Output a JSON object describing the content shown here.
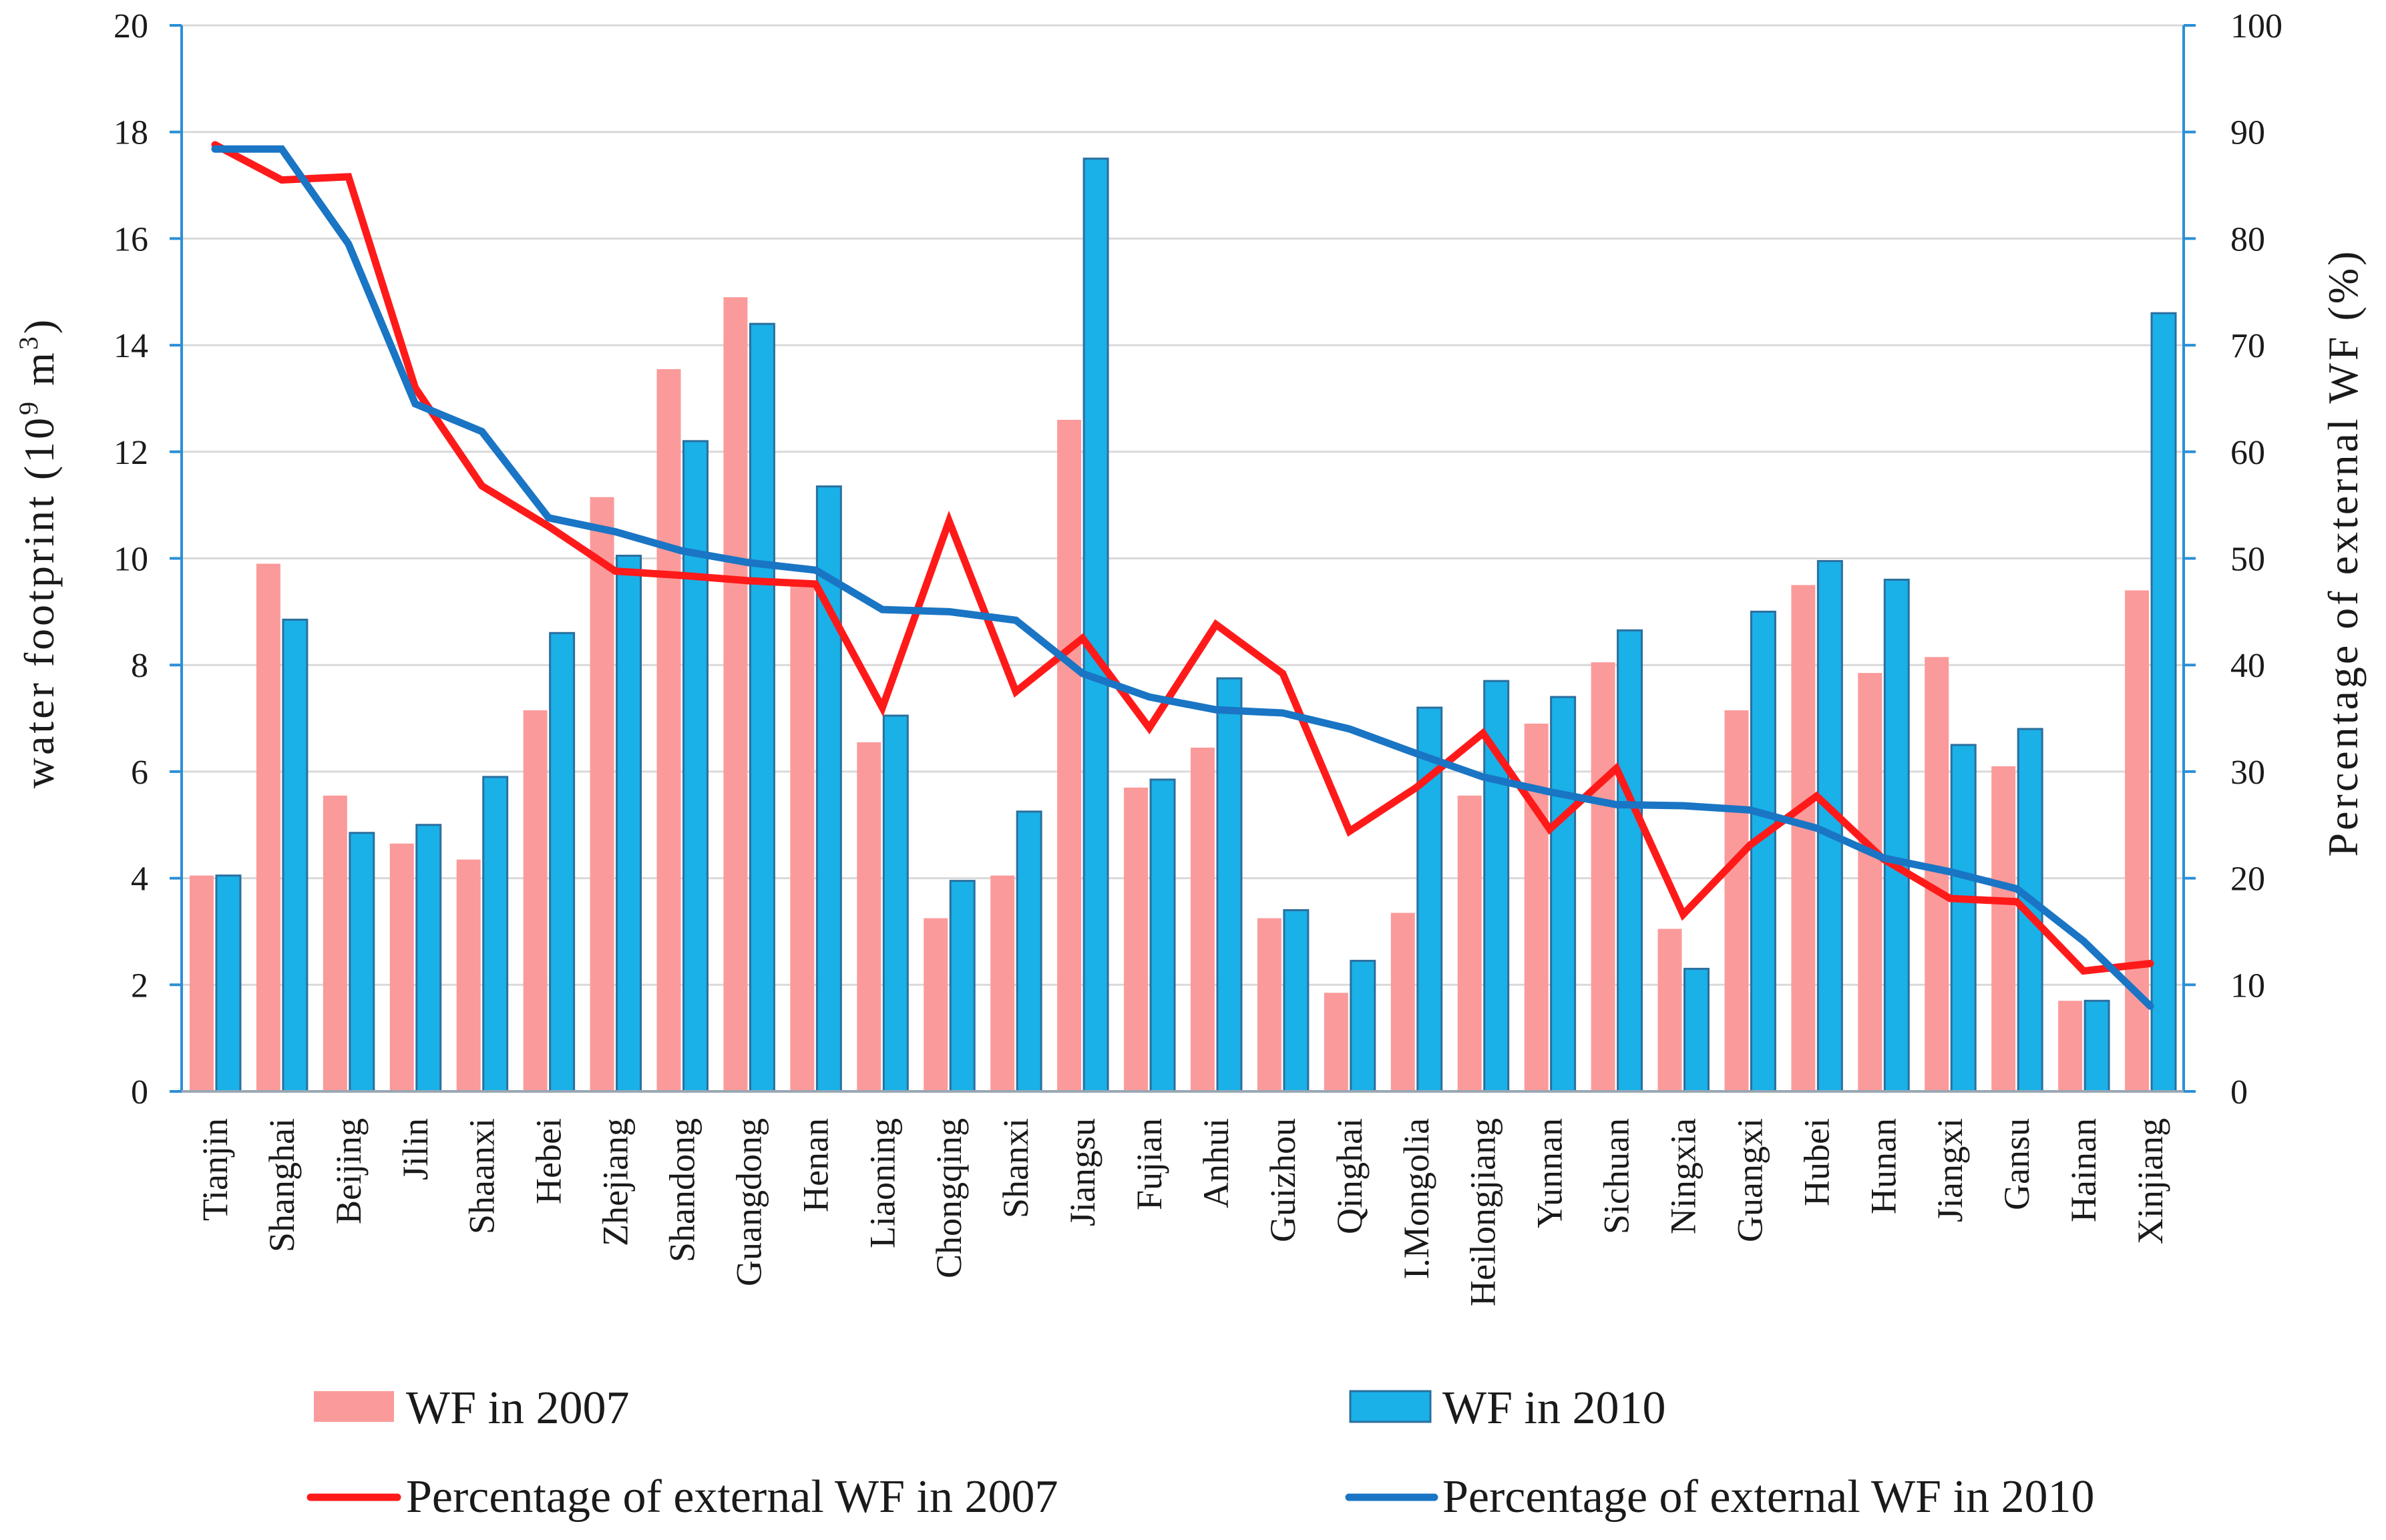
{
  "chart_data": {
    "type": "bar",
    "categories": [
      "Tianjin",
      "Shanghai",
      "Beijing",
      "Jilin",
      "Shaanxi",
      "Hebei",
      "Zhejiang",
      "Shandong",
      "Guangdong",
      "Henan",
      "Liaoning",
      "Chongqing",
      "Shanxi",
      "Jiangsu",
      "Fujian",
      "Anhui",
      "Guizhou",
      "Qinghai",
      "I.Mongolia",
      "Heilongjiang",
      "Yunnan",
      "Sichuan",
      "Ningxia",
      "Guangxi",
      "Hubei",
      "Hunan",
      "Jiangxi",
      "Gansu",
      "Hainan",
      "Xinjiang"
    ],
    "series": [
      {
        "name": "WF in 2007",
        "kind": "bar",
        "axis": "left",
        "color": "#fb9a9a",
        "values": [
          4.05,
          9.9,
          5.55,
          4.65,
          4.35,
          7.15,
          11.15,
          13.55,
          14.9,
          9.55,
          6.55,
          3.25,
          4.05,
          12.6,
          5.7,
          6.45,
          3.25,
          1.85,
          3.35,
          5.55,
          6.9,
          8.05,
          3.05,
          7.15,
          9.5,
          7.85,
          8.15,
          6.1,
          1.7,
          9.4
        ]
      },
      {
        "name": "WF in 2010",
        "kind": "bar",
        "axis": "right-bar",
        "color": "#1ab0e8",
        "values": [
          4.05,
          8.85,
          4.85,
          5.0,
          5.9,
          8.6,
          10.05,
          12.2,
          14.4,
          11.35,
          7.05,
          3.95,
          5.25,
          17.5,
          5.85,
          7.75,
          3.4,
          2.45,
          7.2,
          7.7,
          7.4,
          8.65,
          2.3,
          9.0,
          9.95,
          9.6,
          6.5,
          6.8,
          1.7,
          14.6
        ]
      },
      {
        "name": "Percentage of external WF in 2007",
        "kind": "line",
        "axis": "right",
        "color": "#ff1a1a",
        "values": [
          88.8,
          85.5,
          85.8,
          66.0,
          56.8,
          53.0,
          48.8,
          48.4,
          47.9,
          47.6,
          36.0,
          53.5,
          37.5,
          42.5,
          34.1,
          43.8,
          39.2,
          24.4,
          28.5,
          33.6,
          24.6,
          30.3,
          16.6,
          23.1,
          27.7,
          21.8,
          18.1,
          17.8,
          11.3,
          12.0
        ]
      },
      {
        "name": "Percentage of external WF in 2010",
        "kind": "line",
        "axis": "right",
        "color": "#1a75c4",
        "values": [
          88.4,
          88.4,
          79.5,
          64.5,
          61.9,
          53.8,
          52.5,
          50.7,
          49.6,
          48.9,
          45.2,
          45.0,
          44.2,
          39.2,
          37.0,
          35.8,
          35.5,
          34.0,
          31.7,
          29.5,
          28.1,
          26.9,
          26.8,
          26.4,
          24.7,
          21.9,
          20.6,
          19.0,
          14.1,
          8.0
        ]
      }
    ],
    "ylabel": "water footprint (10⁹ m³)",
    "ylabel_main": "water footprint (10",
    "ylabel_exp": "9",
    "ylabel_mid": " m",
    "ylabel_exp2": "3",
    "ylabel_end": ")",
    "y2label": "Percentage of external WF (%)",
    "ylim": [
      0,
      20
    ],
    "y2lim": [
      0,
      100
    ],
    "yticks": [
      0,
      2,
      4,
      6,
      8,
      10,
      12,
      14,
      16,
      18,
      20
    ],
    "y2ticks": [
      0,
      10,
      20,
      30,
      40,
      50,
      60,
      70,
      80,
      90,
      100
    ],
    "grid": true,
    "legend_position": "bottom"
  },
  "colors": {
    "axis": "#2b8fd6",
    "grid": "#d9d9d9"
  }
}
